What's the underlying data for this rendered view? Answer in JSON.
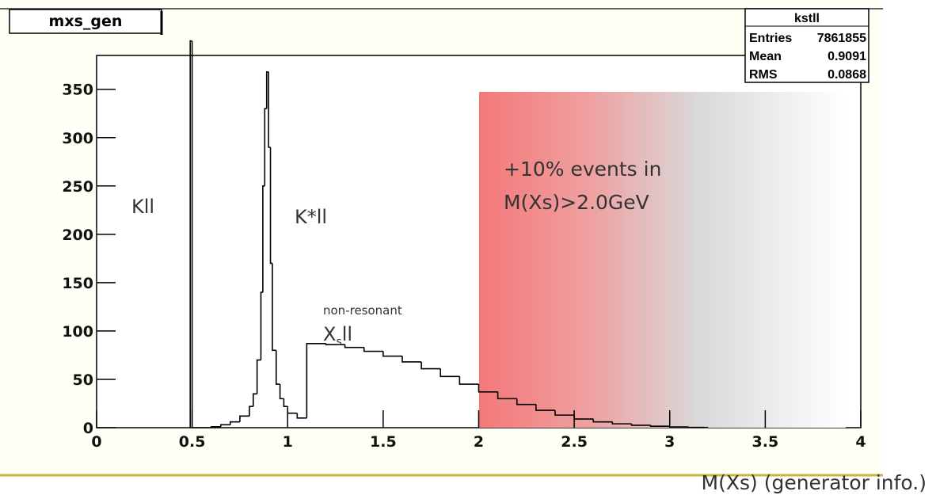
{
  "chart_data": {
    "type": "histogram",
    "title": "mxs_gen",
    "x_label": "M(Xs) (generator info.)",
    "bins": [
      0.49,
      0.5,
      0.6,
      0.65,
      0.7,
      0.75,
      0.8,
      0.82,
      0.84,
      0.86,
      0.87,
      0.88,
      0.89,
      0.9,
      0.91,
      0.92,
      0.94,
      0.96,
      0.98,
      1.0,
      1.05,
      1.1,
      1.2,
      1.3,
      1.4,
      1.5,
      1.6,
      1.7,
      1.8,
      1.9,
      2.0,
      2.1,
      2.2,
      2.3,
      2.4,
      2.5,
      2.6,
      2.7,
      2.8,
      2.9,
      3.0,
      3.1,
      3.2
    ],
    "values": [
      400,
      0,
      1,
      3,
      6,
      12,
      22,
      35,
      70,
      140,
      250,
      330,
      368,
      290,
      170,
      80,
      45,
      30,
      22,
      15,
      10,
      87,
      86,
      83,
      79,
      74,
      68,
      61,
      53,
      45,
      37,
      30,
      24,
      18,
      13,
      9,
      6,
      4,
      2.5,
      1.5,
      0.8,
      0.3
    ],
    "color": "#000000",
    "xlim": [
      0,
      4
    ],
    "xticks": [
      0,
      0.5,
      1,
      1.5,
      2,
      2.5,
      3,
      3.5,
      4
    ],
    "ylim": [
      0,
      385
    ],
    "yticks": [
      0,
      50,
      100,
      150,
      200,
      250,
      300,
      350
    ],
    "stats": {
      "title": "kstll",
      "rows": [
        [
          "Entries",
          "7861855"
        ],
        [
          "Mean",
          "0.9091"
        ],
        [
          "RMS",
          "0.0868"
        ]
      ]
    },
    "annotations": {
      "kll": "Kll",
      "kstar": "K*ll",
      "nonres": "non-resonant",
      "xs": [
        "X",
        "s",
        "ll"
      ],
      "events": [
        "+10% events in",
        "M(Xs)>2.0GeV"
      ]
    }
  }
}
